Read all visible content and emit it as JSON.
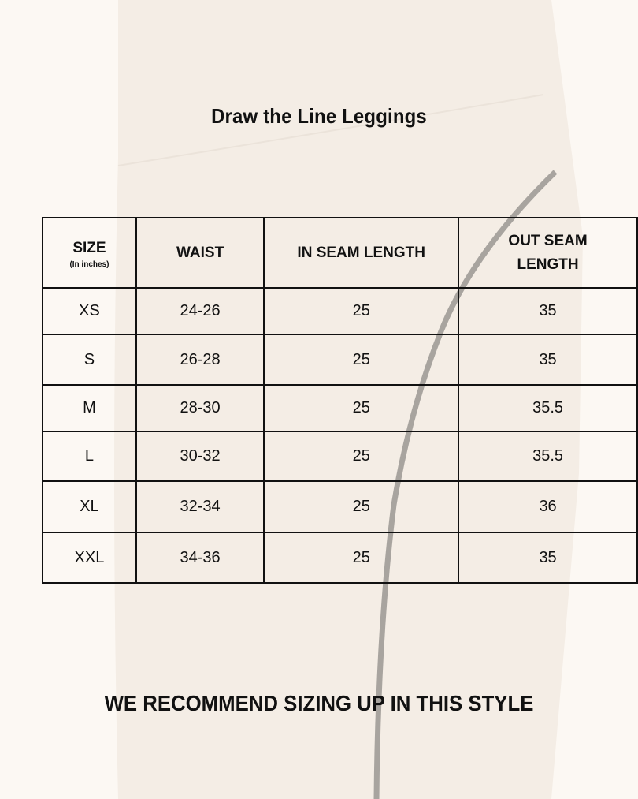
{
  "title": "Draw the Line Leggings",
  "table": {
    "headers": [
      {
        "label": "SIZE",
        "sub": "(In inches)"
      },
      {
        "label": "WAIST"
      },
      {
        "label": "IN SEAM LENGTH"
      },
      {
        "label": "OUT SEAM LENGTH"
      }
    ],
    "rows": [
      [
        "XS",
        "24-26",
        "25",
        "35"
      ],
      [
        "S",
        "26-28",
        "25",
        "35"
      ],
      [
        "M",
        "28-30",
        "25",
        "35.5"
      ],
      [
        "L",
        "30-32",
        "25",
        "35.5"
      ],
      [
        "XL",
        "32-34",
        "25",
        "36"
      ],
      [
        "XXL",
        "34-36",
        "25",
        "35"
      ]
    ]
  },
  "recommendation": "WE RECOMMEND SIZING UP IN THIS STYLE",
  "colors": {
    "background": "#fcf8f3",
    "garment": "#f3ece4",
    "seam_line": "#a8a49f",
    "text": "#111111"
  }
}
